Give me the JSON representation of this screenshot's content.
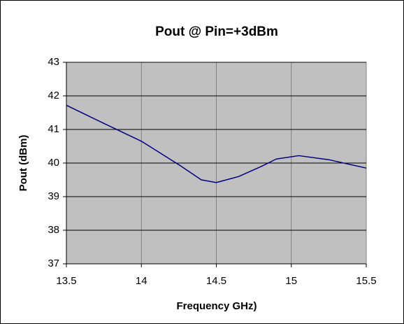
{
  "chart_data": {
    "type": "line",
    "title": "Pout @ Pin=+3dBm",
    "x_label": "Frequency GHz)",
    "y_label": "Pout (dBm)",
    "x": [
      13.5,
      13.75,
      14,
      14.25,
      14.4,
      14.5,
      14.65,
      14.8,
      14.9,
      15.05,
      15.25,
      15.5
    ],
    "series": [
      {
        "name": "Pout",
        "color": "#000080",
        "values": [
          41.72,
          41.18,
          40.65,
          39.95,
          39.5,
          39.42,
          39.6,
          39.9,
          40.12,
          40.22,
          40.1,
          39.85
        ]
      }
    ],
    "xlim": [
      13.5,
      15.5
    ],
    "xticks": [
      13.5,
      14,
      14.5,
      15,
      15.5
    ],
    "ylim": [
      37,
      43
    ],
    "yticks": [
      37,
      38,
      39,
      40,
      41,
      42,
      43
    ],
    "grid": true,
    "plot_background": "#c0c0c0"
  }
}
